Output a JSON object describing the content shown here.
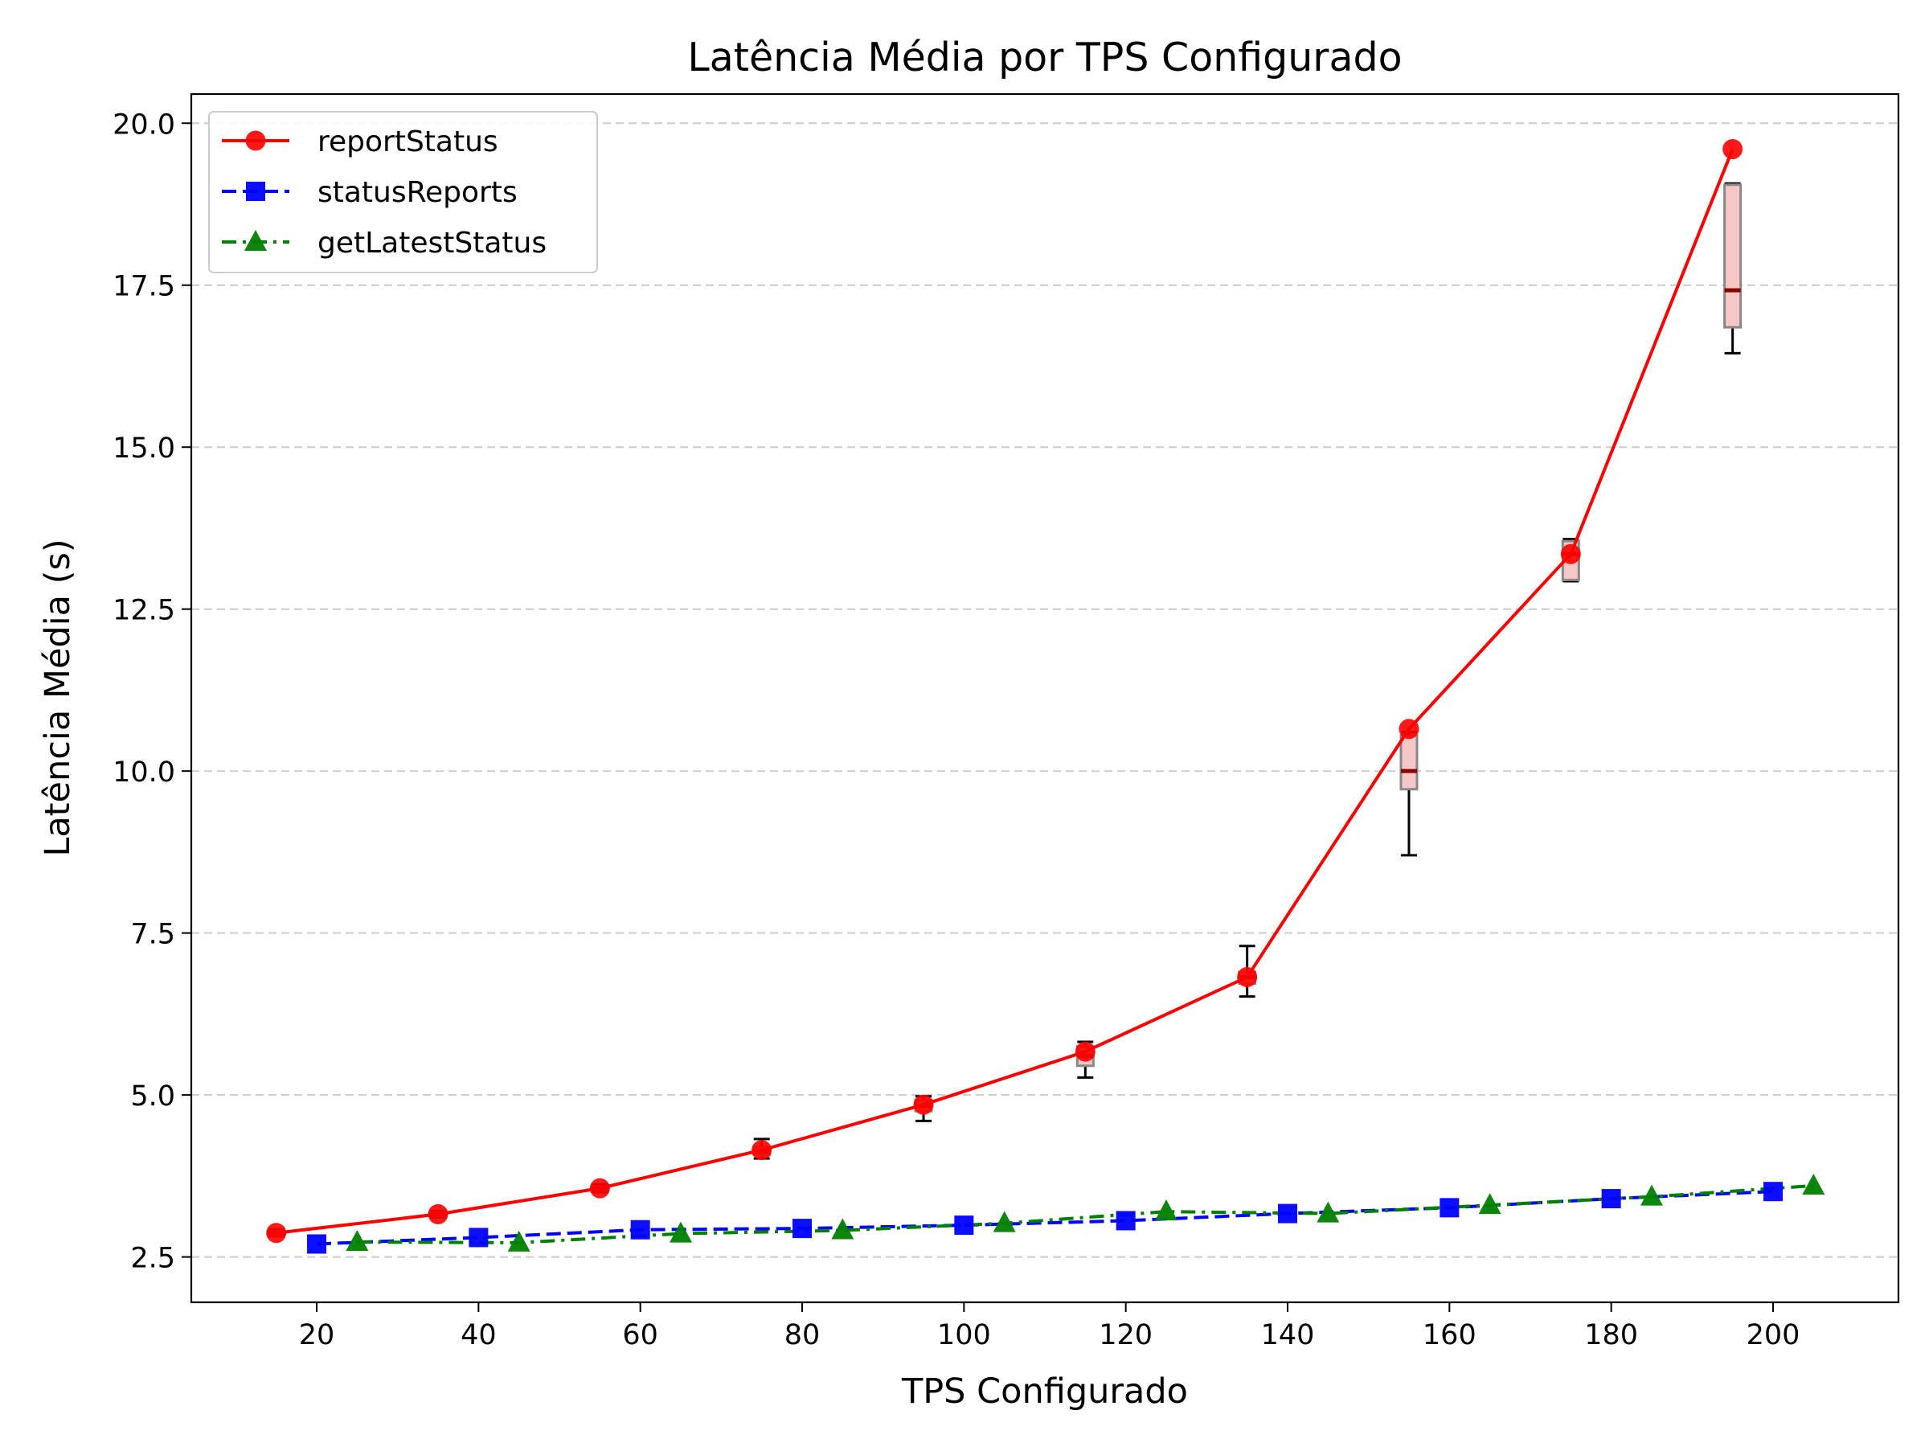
{
  "chart_data": {
    "type": "line",
    "title": "Latência Média por TPS Configurado",
    "xlabel": "TPS Configurado",
    "ylabel": "Latência Média (s)",
    "xlim": [
      4.5,
      215.5
    ],
    "ylim": [
      1.8,
      20.45
    ],
    "xticks": [
      20,
      40,
      60,
      80,
      100,
      120,
      140,
      160,
      180,
      200
    ],
    "yticks": [
      2.5,
      5.0,
      7.5,
      10.0,
      12.5,
      15.0,
      17.5,
      20.0
    ],
    "xtick_labels": [
      "20",
      "40",
      "60",
      "80",
      "100",
      "120",
      "140",
      "160",
      "180",
      "200"
    ],
    "ytick_labels": [
      "2.5",
      "5.0",
      "7.5",
      "10.0",
      "12.5",
      "15.0",
      "17.5",
      "20.0"
    ],
    "grid": "horizontal dashed",
    "legend_position": "top-left",
    "series": [
      {
        "name": "reportStatus",
        "color": "#ff0000",
        "marker": "circle",
        "linestyle": "solid",
        "x": [
          15,
          35,
          55,
          75,
          95,
          115,
          135,
          155,
          175,
          195
        ],
        "y": [
          2.87,
          3.16,
          3.56,
          4.15,
          4.85,
          5.67,
          6.82,
          10.65,
          13.35,
          19.6
        ]
      },
      {
        "name": "statusReports",
        "color": "#0000ff",
        "marker": "square",
        "linestyle": "dashed",
        "x": [
          20,
          40,
          60,
          80,
          100,
          120,
          140,
          160,
          180,
          200
        ],
        "y": [
          2.7,
          2.8,
          2.92,
          2.94,
          2.99,
          3.06,
          3.17,
          3.26,
          3.4,
          3.51
        ]
      },
      {
        "name": "getLatestStatus",
        "color": "#008000",
        "marker": "triangle",
        "linestyle": "dashdot",
        "x": [
          25,
          45,
          65,
          85,
          105,
          125,
          145,
          165,
          185,
          205
        ],
        "y": [
          2.73,
          2.72,
          2.86,
          2.91,
          3.02,
          3.2,
          3.17,
          3.3,
          3.43,
          3.6
        ]
      }
    ],
    "boxes": [
      {
        "x": 15,
        "q1": 2.84,
        "median": 2.87,
        "q3": 2.9,
        "whisker_low": 2.82,
        "whisker_high": 2.92
      },
      {
        "x": 35,
        "q1": 3.13,
        "median": 3.16,
        "q3": 3.19,
        "whisker_low": 3.11,
        "whisker_high": 3.21
      },
      {
        "x": 55,
        "q1": 3.53,
        "median": 3.56,
        "q3": 3.59,
        "whisker_low": 3.5,
        "whisker_high": 3.62
      },
      {
        "x": 75,
        "q1": 4.08,
        "median": 4.13,
        "q3": 4.2,
        "whisker_low": 4.02,
        "whisker_high": 4.32
      },
      {
        "x": 95,
        "q1": 4.75,
        "median": 4.83,
        "q3": 4.92,
        "whisker_low": 4.6,
        "whisker_high": 4.98
      },
      {
        "x": 115,
        "q1": 5.45,
        "median": 5.6,
        "q3": 5.75,
        "whisker_low": 5.27,
        "whisker_high": 5.82
      },
      {
        "x": 135,
        "q1": 6.72,
        "median": 6.82,
        "q3": 6.9,
        "whisker_low": 6.52,
        "whisker_high": 7.3
      },
      {
        "x": 155,
        "q1": 9.72,
        "median": 10.0,
        "q3": 10.55,
        "whisker_low": 8.7,
        "whisker_high": 10.6
      },
      {
        "x": 175,
        "q1": 12.95,
        "median": 13.35,
        "q3": 13.55,
        "whisker_low": 12.93,
        "whisker_high": 13.58
      },
      {
        "x": 195,
        "q1": 16.85,
        "median": 17.42,
        "q3": 19.05,
        "whisker_low": 16.45,
        "whisker_high": 19.07
      }
    ],
    "colors": {
      "box_fill": "#f7c6c6",
      "box_edge": "#888888",
      "median": "#8b0000",
      "whisker": "#000000",
      "grid": "#cccccc"
    }
  }
}
